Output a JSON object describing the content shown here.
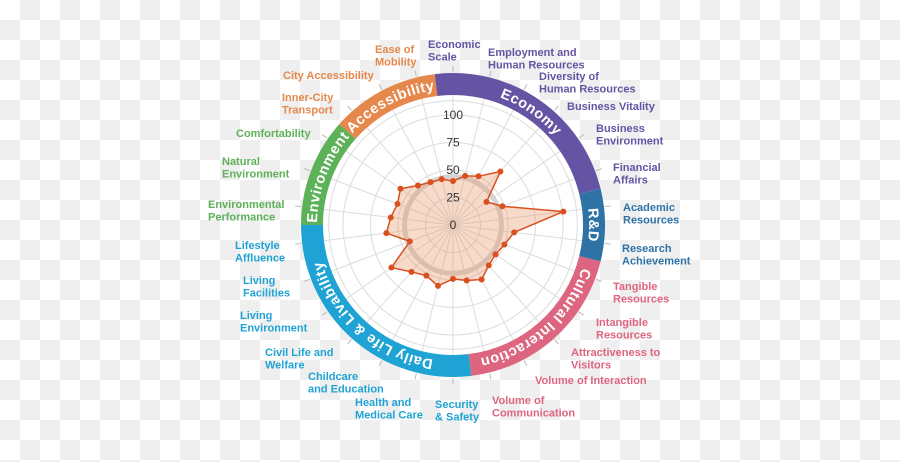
{
  "chart_data": {
    "type": "radar",
    "title": "",
    "radial_range": [
      0,
      100
    ],
    "radial_ticks": [
      "0",
      "25",
      "50",
      "75",
      "100"
    ],
    "reference_circle_value": 44,
    "grid": true,
    "colors": {
      "line": "#d9501e",
      "fill": "rgba(232,150,100,0.35)",
      "reference_circle": "#d4d4d4"
    },
    "groups": [
      {
        "name": "Economy",
        "color": "#6553a3",
        "count": 6
      },
      {
        "name": "R&D",
        "color": "#2f73a6",
        "count": 2
      },
      {
        "name": "Cultural Interaction",
        "color": "#de6580",
        "count": 5
      },
      {
        "name": "Daily Life & Livability",
        "color": "#1fa3d4",
        "count": 7
      },
      {
        "name": "Environment",
        "color": "#5db158",
        "count": 3
      },
      {
        "name": "Accessibility",
        "color": "#e6884b",
        "count": 3
      }
    ],
    "categories": [
      [
        "Economic",
        "Scale"
      ],
      [
        "Employment and",
        "Human Resources"
      ],
      [
        "Diversity of",
        "Human Resources"
      ],
      [
        "Business Vitality"
      ],
      [
        "Business",
        "Environment"
      ],
      [
        "Financial",
        "Affairs"
      ],
      [
        "Academic",
        "Resources"
      ],
      [
        "Research",
        "Achievement"
      ],
      [
        "Tangible",
        "Resources"
      ],
      [
        "Intangible",
        "Resources"
      ],
      [
        "Attractiveness to",
        "Visitors"
      ],
      [
        "Volume of Interaction"
      ],
      [
        "Volume of",
        "Communication"
      ],
      [
        "Security",
        "& Safety"
      ],
      [
        "Health and",
        "Medical Care"
      ],
      [
        "Childcare",
        "and Education"
      ],
      [
        "Civil Life and",
        "Welfare"
      ],
      [
        "Living",
        "Environment"
      ],
      [
        "Living",
        "Facilities"
      ],
      [
        "Lifestyle",
        "Affluence"
      ],
      [
        "Environmental",
        "Performance"
      ],
      [
        "Natural",
        "Environment"
      ],
      [
        "Comfortability"
      ],
      [
        "Inner-City",
        "Transport"
      ],
      [
        "City Accessibility"
      ],
      [
        "Ease of",
        "Mobility"
      ]
    ],
    "values": [
      40,
      46,
      50,
      65,
      37,
      48,
      101,
      56,
      50,
      47,
      49,
      56,
      52,
      49,
      57,
      52,
      57,
      68,
      42,
      61,
      57,
      54,
      58,
      48,
      44,
      43
    ]
  }
}
